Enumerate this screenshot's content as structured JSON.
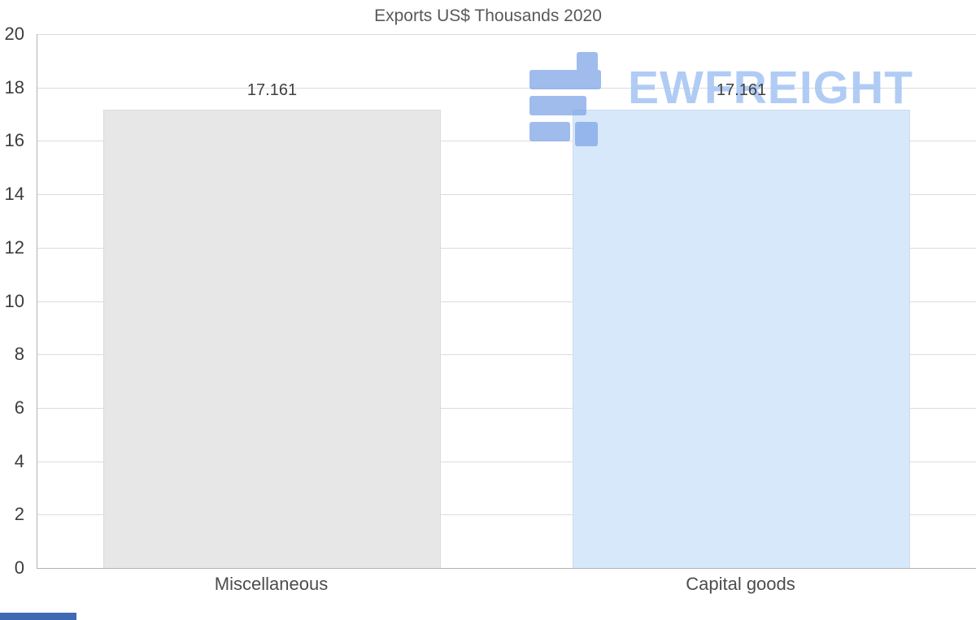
{
  "chart_data": {
    "type": "bar",
    "title": "Exports US$ Thousands 2020",
    "categories": [
      "Miscellaneous",
      "Capital goods"
    ],
    "values": [
      17.161,
      17.161
    ],
    "value_labels": [
      "17.161",
      "17.161"
    ],
    "ylim": [
      0,
      20
    ],
    "yticks": [
      0,
      2,
      4,
      6,
      8,
      10,
      12,
      14,
      16,
      18,
      20
    ],
    "grid": true,
    "legend": false,
    "xlabel": "",
    "ylabel": "",
    "bar_colors": [
      "#e7e7e7",
      "#d8e8fb"
    ]
  },
  "watermark": {
    "text": "EWFREIGHT",
    "text_color": "#a9c7f3",
    "icon": "freight-logo-icon",
    "icon_color": "#7fa6e8"
  },
  "decor": {
    "accent_bar_color": "#3f69b3"
  }
}
